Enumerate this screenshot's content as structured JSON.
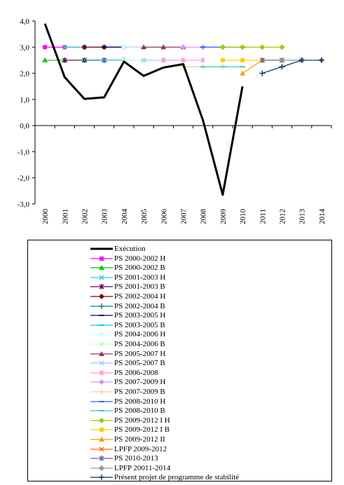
{
  "chart_data": {
    "type": "line",
    "title": "",
    "xlabel": "",
    "ylabel": "",
    "ylim": [
      -3.0,
      4.0
    ],
    "y_ticks": [
      "4,0",
      "3,0",
      "2,0",
      "1,0",
      "0,0",
      "-1,0",
      "-2,0",
      "-3,0"
    ],
    "categories": [
      "2000",
      "2001",
      "2002",
      "2003",
      "2004",
      "2005",
      "2006",
      "2007",
      "2008",
      "2009",
      "2010",
      "2011",
      "2012",
      "2013",
      "2014"
    ],
    "grid": false,
    "legend_position": "bottom",
    "series": [
      {
        "name": "Exécution",
        "color": "#000000",
        "marker": "none",
        "width": 3,
        "values": [
          3.9,
          1.85,
          1.02,
          1.08,
          2.45,
          1.9,
          2.22,
          2.35,
          0.2,
          -2.65,
          1.5,
          null,
          null,
          null,
          null
        ]
      },
      {
        "name": "PS 2000-2002 H",
        "color": "#ff00ff",
        "marker": "square",
        "values": [
          3.0,
          3.0,
          3.0,
          null,
          null,
          null,
          null,
          null,
          null,
          null,
          null,
          null,
          null,
          null,
          null
        ]
      },
      {
        "name": "PS 2000-2002 B",
        "color": "#00cc00",
        "marker": "triangle",
        "values": [
          2.5,
          2.5,
          2.5,
          null,
          null,
          null,
          null,
          null,
          null,
          null,
          null,
          null,
          null,
          null,
          null
        ]
      },
      {
        "name": "PS 2001-2003 H",
        "color": "#33cccc",
        "marker": "x",
        "values": [
          null,
          3.0,
          3.0,
          3.0,
          null,
          null,
          null,
          null,
          null,
          null,
          null,
          null,
          null,
          null,
          null
        ]
      },
      {
        "name": "PS 2001-2003 B",
        "color": "#660066",
        "marker": "star",
        "values": [
          null,
          2.5,
          2.5,
          2.5,
          null,
          null,
          null,
          null,
          null,
          null,
          null,
          null,
          null,
          null,
          null
        ]
      },
      {
        "name": "PS 2002-2004 H",
        "color": "#800000",
        "marker": "diamond",
        "values": [
          null,
          null,
          3.0,
          3.0,
          3.0,
          null,
          null,
          null,
          null,
          null,
          null,
          null,
          null,
          null,
          null
        ]
      },
      {
        "name": "PS 2002-2004 B",
        "color": "#008080",
        "marker": "plus",
        "values": [
          null,
          null,
          2.5,
          2.5,
          2.5,
          null,
          null,
          null,
          null,
          null,
          null,
          null,
          null,
          null,
          null
        ]
      },
      {
        "name": "PS 2003-2005 H",
        "color": "#000080",
        "marker": "dash",
        "values": [
          null,
          null,
          null,
          3.0,
          3.0,
          3.0,
          null,
          null,
          null,
          null,
          null,
          null,
          null,
          null,
          null
        ]
      },
      {
        "name": "PS 2003-2005 B",
        "color": "#00ccff",
        "marker": "dash",
        "values": [
          null,
          null,
          null,
          2.5,
          2.5,
          2.5,
          null,
          null,
          null,
          null,
          null,
          null,
          null,
          null,
          null
        ]
      },
      {
        "name": "PS 2004-2006 H",
        "color": "#ccffff",
        "marker": "diamond",
        "values": [
          null,
          null,
          null,
          null,
          3.0,
          3.0,
          3.0,
          null,
          null,
          null,
          null,
          null,
          null,
          null,
          null
        ]
      },
      {
        "name": "PS 2004-2006 B",
        "color": "#ccffcc",
        "marker": "square",
        "values": [
          null,
          null,
          null,
          null,
          2.5,
          2.5,
          2.5,
          null,
          null,
          null,
          null,
          null,
          null,
          null,
          null
        ]
      },
      {
        "name": "PS 2005-2007 H",
        "color": "#993366",
        "marker": "triangle",
        "values": [
          null,
          null,
          null,
          null,
          null,
          3.0,
          3.0,
          3.0,
          null,
          null,
          null,
          null,
          null,
          null,
          null
        ]
      },
      {
        "name": "PS 2005-2007 B",
        "color": "#99ccff",
        "marker": "x",
        "values": [
          null,
          null,
          null,
          null,
          null,
          2.5,
          2.5,
          2.5,
          null,
          null,
          null,
          null,
          null,
          null,
          null
        ]
      },
      {
        "name": "PS 2006-2008",
        "color": "#ff99cc",
        "marker": "star",
        "values": [
          null,
          null,
          null,
          null,
          null,
          null,
          2.5,
          2.5,
          2.5,
          null,
          null,
          null,
          null,
          null,
          null
        ]
      },
      {
        "name": "PS 2007-2009 H",
        "color": "#cc99ff",
        "marker": "diamond",
        "values": [
          null,
          null,
          null,
          null,
          null,
          null,
          null,
          3.0,
          3.0,
          3.0,
          null,
          null,
          null,
          null,
          null
        ]
      },
      {
        "name": "PS 2007-2009 B",
        "color": "#ffcc99",
        "marker": "plus",
        "values": [
          null,
          null,
          null,
          null,
          null,
          null,
          null,
          2.25,
          2.25,
          2.25,
          null,
          null,
          null,
          null,
          null
        ]
      },
      {
        "name": "PS 2008-2010 H",
        "color": "#3366ff",
        "marker": "dash",
        "values": [
          null,
          null,
          null,
          null,
          null,
          null,
          null,
          null,
          3.0,
          3.0,
          3.0,
          null,
          null,
          null,
          null
        ]
      },
      {
        "name": "PS 2008-2010 B",
        "color": "#33cccc",
        "marker": "dash",
        "values": [
          null,
          null,
          null,
          null,
          null,
          null,
          null,
          null,
          2.25,
          2.25,
          2.25,
          null,
          null,
          null,
          null
        ]
      },
      {
        "name": "PS 2009-2012 I H",
        "color": "#99cc00",
        "marker": "diamond",
        "values": [
          null,
          null,
          null,
          null,
          null,
          null,
          null,
          null,
          null,
          3.0,
          3.0,
          3.0,
          3.0,
          null,
          null
        ]
      },
      {
        "name": "PS 2009-2012 I B",
        "color": "#ffcc00",
        "marker": "square",
        "values": [
          null,
          null,
          null,
          null,
          null,
          null,
          null,
          null,
          null,
          2.5,
          2.5,
          2.5,
          2.5,
          null,
          null
        ]
      },
      {
        "name": "PS 2009-2012 II",
        "color": "#ff9900",
        "marker": "triangle",
        "values": [
          null,
          null,
          null,
          null,
          null,
          null,
          null,
          null,
          null,
          null,
          2.0,
          2.5,
          2.5,
          null,
          null
        ]
      },
      {
        "name": "LPFP 2009-2012",
        "color": "#ff6600",
        "marker": "x",
        "values": [
          null,
          null,
          null,
          null,
          null,
          null,
          null,
          null,
          null,
          null,
          null,
          2.5,
          2.5,
          null,
          null
        ]
      },
      {
        "name": "PS 2010-2013",
        "color": "#666699",
        "marker": "star",
        "values": [
          null,
          null,
          null,
          null,
          null,
          null,
          null,
          null,
          null,
          null,
          null,
          2.5,
          2.5,
          2.5,
          null
        ]
      },
      {
        "name": "LPFP 20011-2014",
        "color": "#969696",
        "marker": "diamond",
        "values": [
          null,
          null,
          null,
          null,
          null,
          null,
          null,
          null,
          null,
          null,
          null,
          null,
          2.5,
          2.5,
          2.5
        ]
      },
      {
        "name": "Présent projet de programme de stabilité",
        "color": "#003366",
        "marker": "plus",
        "values": [
          null,
          null,
          null,
          null,
          null,
          null,
          null,
          null,
          null,
          null,
          null,
          2.0,
          2.25,
          2.5,
          2.5
        ]
      }
    ]
  }
}
